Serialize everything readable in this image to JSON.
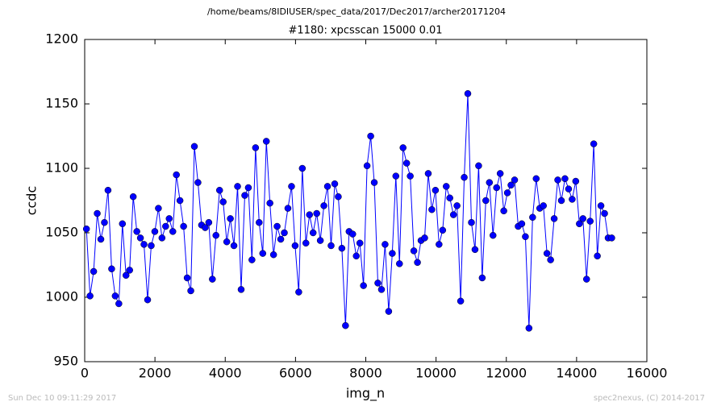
{
  "chart_data": {
    "type": "line",
    "suptitle": "/home/beams/8IDIUSER/spec_data/2017/Dec2017/archer20171204",
    "title": "#1180: xpcsscan 15000 0.01",
    "xlabel": "img_n",
    "ylabel": "ccdc",
    "footer_left": "Sun Dec 10 09:11:29 2017",
    "footer_right": "spec2nexus, (C) 2014-2017",
    "x": [
      50,
      152,
      255,
      357,
      460,
      562,
      664,
      767,
      869,
      972,
      1074,
      1176,
      1279,
      1381,
      1484,
      1586,
      1688,
      1791,
      1893,
      1996,
      2098,
      2200,
      2303,
      2405,
      2508,
      2610,
      2712,
      2815,
      2917,
      3020,
      3122,
      3224,
      3327,
      3429,
      3532,
      3634,
      3736,
      3839,
      3941,
      4044,
      4146,
      4248,
      4351,
      4453,
      4556,
      4658,
      4760,
      4863,
      4965,
      5068,
      5170,
      5272,
      5375,
      5477,
      5580,
      5682,
      5784,
      5887,
      5989,
      6092,
      6194,
      6296,
      6399,
      6501,
      6604,
      6706,
      6808,
      6911,
      7013,
      7116,
      7218,
      7320,
      7423,
      7525,
      7628,
      7730,
      7832,
      7935,
      8037,
      8140,
      8242,
      8344,
      8447,
      8549,
      8652,
      8754,
      8856,
      8959,
      9061,
      9164,
      9266,
      9368,
      9471,
      9573,
      9676,
      9778,
      9880,
      9983,
      10085,
      10188,
      10290,
      10392,
      10495,
      10597,
      10700,
      10802,
      10904,
      11007,
      11109,
      11212,
      11314,
      11416,
      11519,
      11621,
      11724,
      11826,
      11928,
      12031,
      12133,
      12236,
      12338,
      12440,
      12543,
      12645,
      12748,
      12850,
      12952,
      13055,
      13157,
      13260,
      13362,
      13464,
      13567,
      13669,
      13772,
      13874,
      13976,
      14079,
      14181,
      14284,
      14386,
      14488,
      14591,
      14693,
      14796,
      14898,
      15000
    ],
    "series": [
      {
        "name": "ccdc",
        "color": "#0000ff",
        "values": [
          1053,
          1001,
          1020,
          1065,
          1045,
          1058,
          1083,
          1022,
          1001,
          995,
          1057,
          1017,
          1021,
          1078,
          1051,
          1046,
          1041,
          998,
          1040,
          1051,
          1069,
          1046,
          1055,
          1061,
          1051,
          1095,
          1075,
          1055,
          1015,
          1005,
          1117,
          1089,
          1056,
          1054,
          1058,
          1014,
          1048,
          1083,
          1074,
          1043,
          1061,
          1040,
          1086,
          1006,
          1079,
          1085,
          1029,
          1116,
          1058,
          1034,
          1121,
          1073,
          1033,
          1055,
          1045,
          1050,
          1069,
          1086,
          1040,
          1004,
          1100,
          1042,
          1064,
          1050,
          1065,
          1044,
          1071,
          1086,
          1040,
          1088,
          1078,
          1038,
          978,
          1051,
          1049,
          1032,
          1042,
          1009,
          1102,
          1125,
          1089,
          1011,
          1006,
          1041,
          989,
          1034,
          1094,
          1026,
          1116,
          1104,
          1094,
          1036,
          1027,
          1044,
          1046,
          1096,
          1068,
          1083,
          1041,
          1052,
          1086,
          1077,
          1064,
          1071,
          997,
          1093,
          1158,
          1058,
          1037,
          1102,
          1015,
          1075,
          1089,
          1048,
          1085,
          1096,
          1067,
          1081,
          1087,
          1091,
          1055,
          1057,
          1047,
          976,
          1062,
          1092,
          1069,
          1071,
          1034,
          1029,
          1061,
          1091,
          1075,
          1092,
          1084,
          1076,
          1090,
          1057,
          1061,
          1014,
          1059,
          1119,
          1032,
          1071,
          1065,
          1046,
          1046
        ]
      }
    ],
    "xlim": [
      0,
      16000
    ],
    "xticks": [
      0,
      2000,
      4000,
      6000,
      8000,
      10000,
      12000,
      14000,
      16000
    ],
    "ylim": [
      950,
      1200
    ],
    "yticks": [
      950,
      1000,
      1050,
      1100,
      1150,
      1200
    ],
    "grid": false
  }
}
